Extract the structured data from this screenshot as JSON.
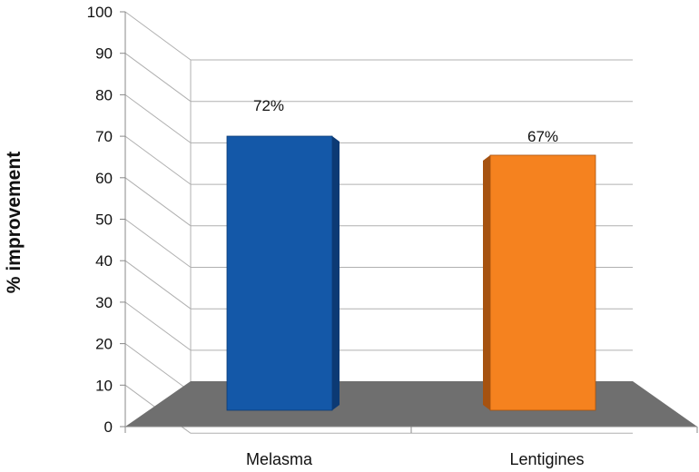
{
  "chart_data": {
    "type": "bar",
    "categories": [
      "Melasma",
      "Lentigines"
    ],
    "values": [
      72,
      67
    ],
    "data_labels": [
      "72%",
      "67%"
    ],
    "ylabel": "% improvement",
    "xlabel": "",
    "ylim": [
      0,
      100
    ],
    "yticks": [
      "0",
      "10",
      "20",
      "30",
      "40",
      "50",
      "60",
      "70",
      "80",
      "90",
      "100"
    ],
    "grid": true,
    "style": "3d",
    "colors": {
      "bars": [
        "#1458a8",
        "#f5821f"
      ],
      "bar_sides": [
        "#0c3a74",
        "#a65210"
      ],
      "floor": "#6f6f6f",
      "grid": "#b0b0b0"
    }
  }
}
